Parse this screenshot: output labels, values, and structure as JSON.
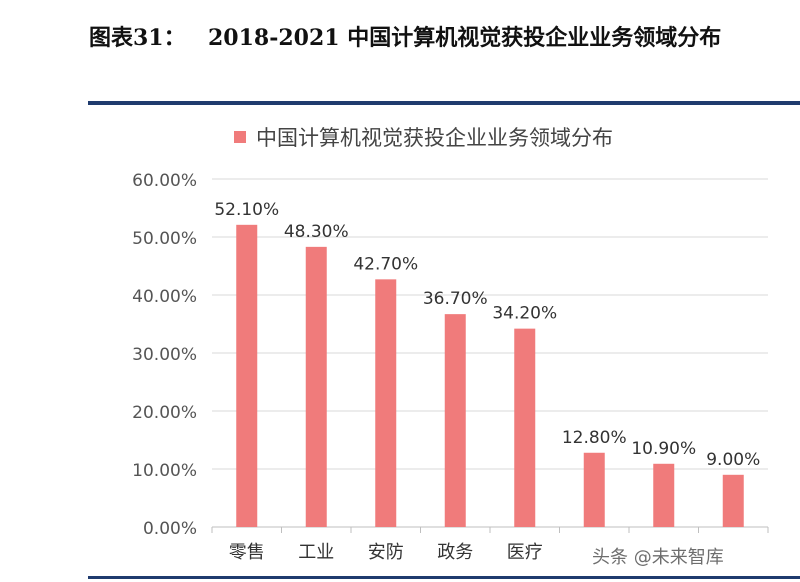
{
  "figure": {
    "number": "图表31：",
    "title": "2018-2021 中国计算机视觉获投企业业务领域分布",
    "rule_color": "#1f3b6e"
  },
  "watermark": "头条 @未来智库",
  "chart_data": {
    "type": "bar",
    "legend": "中国计算机视觉获投企业业务领域分布",
    "legend_position": "top",
    "categories": [
      "零售",
      "工业",
      "安防",
      "政务",
      "医疗",
      "",
      "",
      ""
    ],
    "values": [
      52.1,
      48.3,
      42.7,
      36.7,
      34.2,
      12.8,
      10.9,
      9.0
    ],
    "data_labels": [
      "52.10%",
      "48.30%",
      "42.70%",
      "36.70%",
      "34.20%",
      "12.80%",
      "10.90%",
      "9.00%"
    ],
    "ylim": [
      0,
      60
    ],
    "yticks": [
      "0.00%",
      "10.00%",
      "20.00%",
      "30.00%",
      "40.00%",
      "50.00%",
      "60.00%"
    ],
    "grid": true,
    "bar_color": "#f07b7b",
    "title": "",
    "xlabel": "",
    "ylabel": ""
  }
}
